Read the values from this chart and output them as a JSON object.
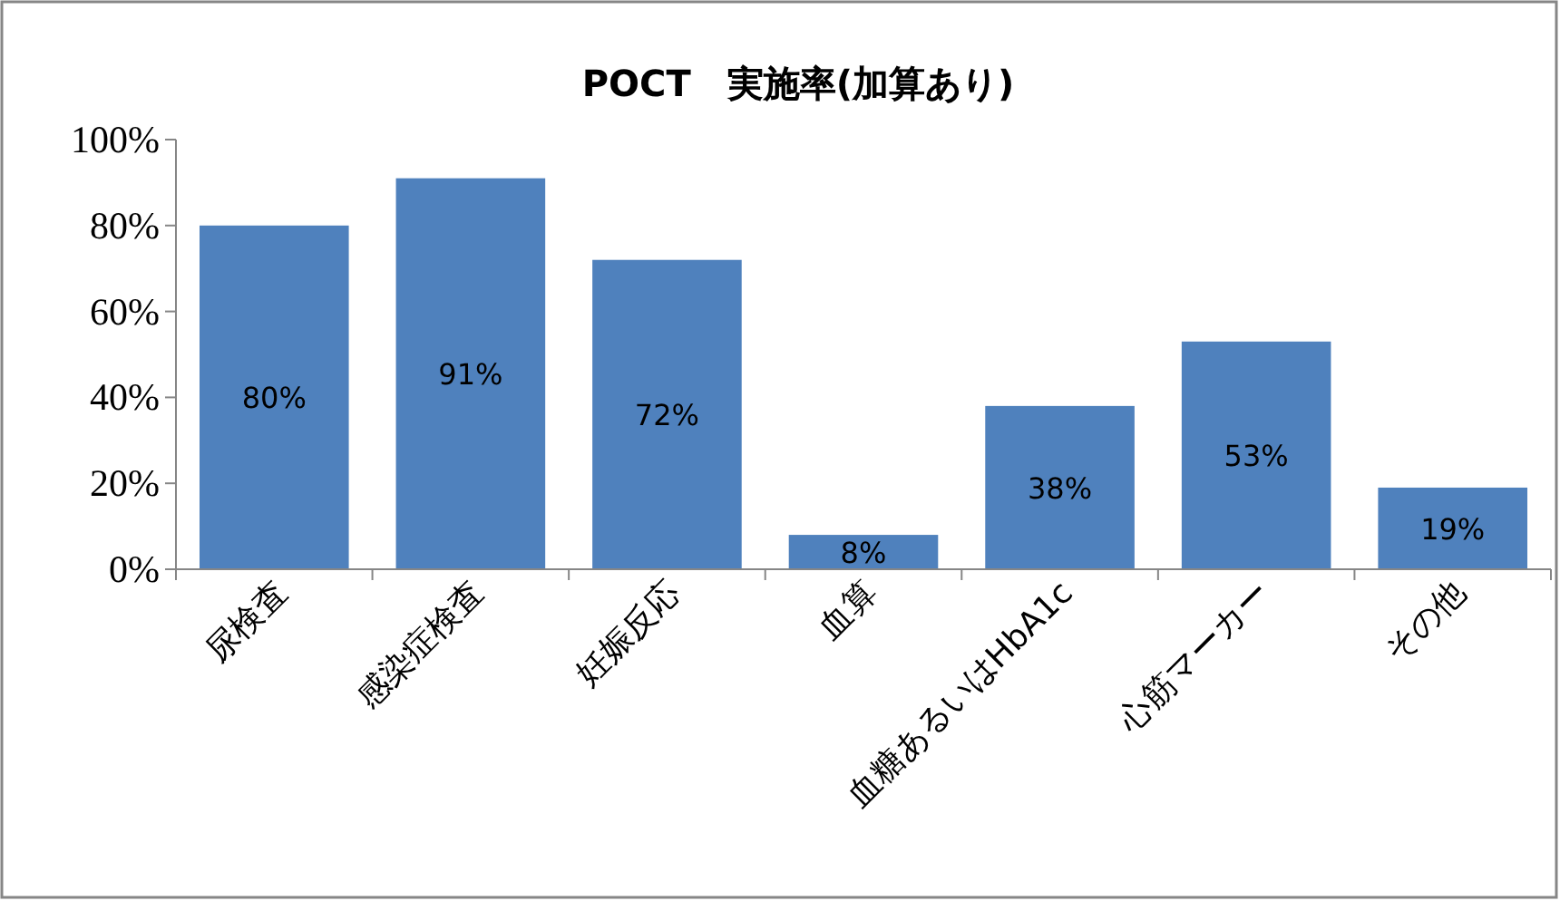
{
  "chart_data": {
    "type": "bar",
    "title": "POCT　実施率(加算あり)",
    "categories": [
      "尿検査",
      "感染症検査",
      "妊娠反応",
      "血算",
      "血糖あるいはHbA1c",
      "心筋マーカー",
      "その他"
    ],
    "values": [
      80,
      91,
      72,
      8,
      38,
      53,
      19
    ],
    "color": "#4f81bd",
    "ylim": [
      0,
      100
    ],
    "yticks": [
      {
        "value": 0,
        "label": "0%"
      },
      {
        "value": 20,
        "label": "20%"
      },
      {
        "value": 40,
        "label": "40%"
      },
      {
        "value": 60,
        "label": "60%"
      },
      {
        "value": 80,
        "label": "80%"
      },
      {
        "value": 100,
        "label": "100%"
      }
    ],
    "value_labels": [
      "80%",
      "91%",
      "72%",
      "8%",
      "38%",
      "53%",
      "19%"
    ]
  }
}
